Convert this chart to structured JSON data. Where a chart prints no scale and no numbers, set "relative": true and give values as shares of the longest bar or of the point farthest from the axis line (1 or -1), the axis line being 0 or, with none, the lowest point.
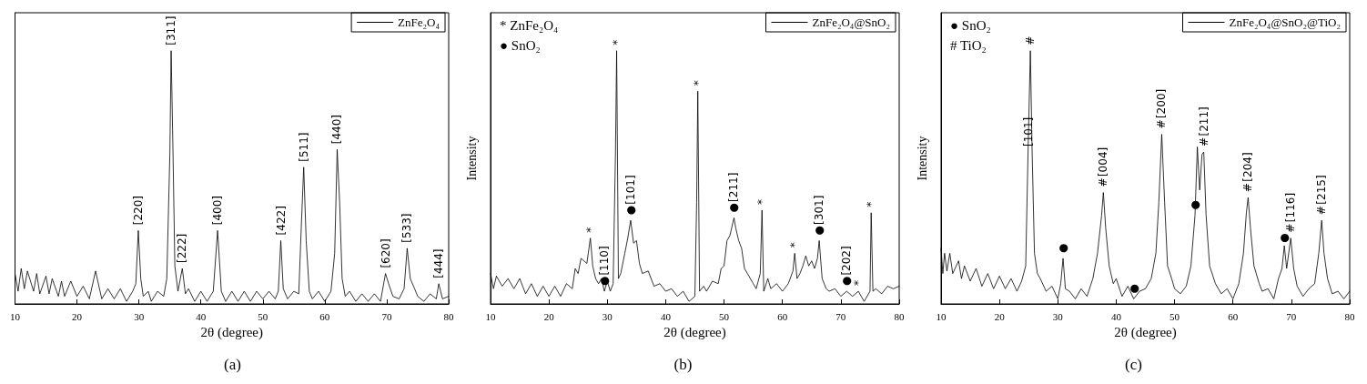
{
  "chart_data": [
    {
      "type": "line",
      "title": "(a)",
      "xlabel": "2θ (degree)",
      "relative": true,
      "xlim": [
        10,
        80
      ],
      "xticks": [
        10,
        20,
        30,
        40,
        50,
        60,
        70,
        80
      ],
      "legend": "top right",
      "grid": false,
      "series": [
        {
          "name": "ZnFe₂O₄",
          "color": "#000000",
          "x": [
            10,
            10.5,
            11,
            11.5,
            12,
            13,
            13.5,
            14,
            15,
            15.5,
            16,
            17,
            17.5,
            18,
            19,
            20,
            21,
            22,
            23,
            24,
            25,
            26,
            27,
            28,
            29,
            29.5,
            29.9,
            30.3,
            30.7,
            31.5,
            32,
            33,
            34,
            34.5,
            35,
            35.2,
            35.5,
            35.8,
            36.3,
            37,
            37.5,
            38,
            39,
            40,
            41,
            42,
            42.7,
            43.3,
            44,
            45,
            46,
            47,
            48,
            49,
            50,
            51,
            52,
            52.5,
            52.9,
            53.3,
            54,
            55,
            55.8,
            56.2,
            56.6,
            57,
            57.5,
            58,
            59,
            60,
            61,
            61.6,
            62,
            62.4,
            62.8,
            63.3,
            64,
            65,
            66,
            67,
            68,
            69,
            69.8,
            70.3,
            71,
            72,
            72.8,
            73.3,
            73.8,
            74.5,
            75,
            76,
            77,
            78,
            78.4,
            79,
            80
          ],
          "values": [
            0.12,
            0.05,
            0.14,
            0.06,
            0.13,
            0.05,
            0.12,
            0.04,
            0.11,
            0.04,
            0.1,
            0.03,
            0.09,
            0.03,
            0.09,
            0.03,
            0.07,
            0.02,
            0.13,
            0.02,
            0.06,
            0.02,
            0.06,
            0.01,
            0.05,
            0.08,
            0.29,
            0.1,
            0.03,
            0.05,
            0.01,
            0.05,
            0.03,
            0.1,
            0.6,
            1,
            0.6,
            0.15,
            0.05,
            0.14,
            0.04,
            0.06,
            0.01,
            0.05,
            0.01,
            0.05,
            0.29,
            0.05,
            0.01,
            0.05,
            0.01,
            0.05,
            0.01,
            0.05,
            0.02,
            0.05,
            0.02,
            0.05,
            0.25,
            0.06,
            0.02,
            0.05,
            0.04,
            0.3,
            0.54,
            0.25,
            0.05,
            0.02,
            0.05,
            0.01,
            0.05,
            0.2,
            0.61,
            0.4,
            0.1,
            0.03,
            0.05,
            0.01,
            0.04,
            0.01,
            0.04,
            0.01,
            0.12,
            0.08,
            0.03,
            0.02,
            0.06,
            0.22,
            0.1,
            0.06,
            0.03,
            0.01,
            0.04,
            0.02,
            0.08,
            0.02,
            0.03
          ]
        }
      ],
      "annotations": [
        {
          "text": "[220]",
          "x": 29.9,
          "y": 0.29
        },
        {
          "text": "[311]",
          "x": 35.2,
          "y": 1
        },
        {
          "text": "[222]",
          "x": 37,
          "y": 0.14
        },
        {
          "text": "[400]",
          "x": 42.7,
          "y": 0.29
        },
        {
          "text": "[422]",
          "x": 52.9,
          "y": 0.25
        },
        {
          "text": "[511]",
          "x": 56.6,
          "y": 0.54
        },
        {
          "text": "[440]",
          "x": 62,
          "y": 0.61
        },
        {
          "text": "[620]",
          "x": 69.8,
          "y": 0.12
        },
        {
          "text": "[533]",
          "x": 73.3,
          "y": 0.22
        },
        {
          "text": "[444]",
          "x": 78.4,
          "y": 0.08
        }
      ]
    },
    {
      "type": "line",
      "title": "(b)",
      "xlabel": "2θ (degree)",
      "ylabel": "Intensity",
      "relative": true,
      "xlim": [
        10,
        80
      ],
      "xticks": [
        10,
        20,
        30,
        40,
        50,
        60,
        70,
        80
      ],
      "legend": "top right",
      "grid": false,
      "series": [
        {
          "name": "ZnFe₂O₄@SnO₂",
          "color": "#000000",
          "x": [
            10,
            10.5,
            11,
            12,
            13,
            14,
            15,
            16,
            17,
            18,
            19,
            20,
            21,
            22,
            23,
            24,
            24.5,
            25,
            25.5,
            26,
            26.5,
            27.1,
            27.5,
            28,
            28.5,
            29,
            29.5,
            30,
            30.5,
            31,
            31.4,
            31.6,
            31.9,
            32.3,
            33,
            33.5,
            34,
            34.5,
            35,
            35.5,
            36,
            37,
            38,
            39,
            40,
            41,
            42,
            43,
            44,
            45,
            45.3,
            45.5,
            45.8,
            46.5,
            47,
            48,
            49,
            49.5,
            50,
            50.5,
            51,
            51.7,
            52,
            52.5,
            53,
            53.5,
            54,
            55,
            55.5,
            56.2,
            56.5,
            56.8,
            57.5,
            58,
            59,
            60,
            61,
            61.8,
            62.1,
            62.5,
            63,
            63.5,
            64,
            64.5,
            65,
            65.5,
            66,
            66.3,
            66.8,
            67.5,
            68,
            69,
            70,
            71,
            72,
            73,
            74,
            75,
            75.2,
            75.5,
            76,
            77,
            78,
            79,
            80
          ],
          "values": [
            0.12,
            0.06,
            0.11,
            0.07,
            0.1,
            0.06,
            0.1,
            0.04,
            0.08,
            0.03,
            0.07,
            0.03,
            0.07,
            0.03,
            0.08,
            0.06,
            0.14,
            0.12,
            0.18,
            0.17,
            0.16,
            0.26,
            0.15,
            0.1,
            0.08,
            0.1,
            0.05,
            0.09,
            0.05,
            0.08,
            0.6,
            1,
            0.1,
            0.12,
            0.2,
            0.26,
            0.33,
            0.24,
            0.25,
            0.16,
            0.12,
            0.13,
            0.07,
            0.08,
            0.05,
            0.06,
            0.03,
            0.05,
            0.01,
            0.03,
            0.4,
            0.84,
            0.05,
            0.07,
            0.05,
            0.09,
            0.08,
            0.14,
            0.15,
            0.25,
            0.27,
            0.34,
            0.3,
            0.25,
            0.22,
            0.14,
            0.12,
            0.08,
            0.06,
            0.12,
            0.37,
            0.05,
            0.1,
            0.06,
            0.08,
            0.05,
            0.08,
            0.13,
            0.2,
            0.1,
            0.12,
            0.15,
            0.19,
            0.15,
            0.17,
            0.14,
            0.18,
            0.25,
            0.1,
            0.06,
            0.05,
            0.06,
            0.03,
            0.05,
            0.03,
            0.05,
            0.01,
            0.05,
            0.36,
            0.05,
            0.06,
            0.04,
            0.07,
            0.06,
            0.07
          ]
        }
      ],
      "annotations": [
        "* ZnFe₂O₄",
        "● SnO₂",
        {
          "text": "*",
          "x": 27.1,
          "y": 0.26
        },
        {
          "text": "*",
          "x": 31.6,
          "y": 1
        },
        {
          "text": "*",
          "x": 45.5,
          "y": 0.84
        },
        {
          "text": "*",
          "x": 56.5,
          "y": 0.37
        },
        {
          "text": "*",
          "x": 62.1,
          "y": 0.2
        },
        {
          "text": "*",
          "x": 73,
          "y": 0.05
        },
        {
          "text": "*",
          "x": 75.2,
          "y": 0.36
        },
        {
          "text": "●",
          "x": 29.5,
          "y": 0.05
        },
        {
          "text": "[110]",
          "x": 29.5,
          "y": 0.05
        },
        {
          "text": "●",
          "x": 34,
          "y": 0.33
        },
        {
          "text": "[101]",
          "x": 34,
          "y": 0.33
        },
        {
          "text": "●",
          "x": 51.7,
          "y": 0.34
        },
        {
          "text": "[211]",
          "x": 51.7,
          "y": 0.34
        },
        {
          "text": "●",
          "x": 66.3,
          "y": 0.25
        },
        {
          "text": "[301]",
          "x": 66.3,
          "y": 0.25
        },
        {
          "text": "●",
          "x": 71,
          "y": 0.05
        },
        {
          "text": "[202]",
          "x": 71,
          "y": 0.05
        }
      ]
    },
    {
      "type": "line",
      "title": "(c)",
      "xlabel": "2θ (degree)",
      "ylabel": "Intensity",
      "relative": true,
      "xlim": [
        10,
        80
      ],
      "xticks": [
        10,
        20,
        30,
        40,
        50,
        60,
        70,
        80
      ],
      "legend": "top right",
      "grid": false,
      "series": [
        {
          "name": "ZnFe₂O₄@SnO₂@TiO₂",
          "color": "#000000",
          "x": [
            10,
            10.3,
            10.6,
            11,
            11.5,
            12,
            13,
            13.5,
            14,
            15,
            16,
            17,
            18,
            19,
            20,
            21,
            22,
            23,
            23.8,
            24.5,
            24.9,
            25.3,
            25.6,
            26,
            26.5,
            27,
            28,
            29,
            30,
            30.5,
            30.9,
            31.3,
            32,
            33,
            34,
            35,
            36,
            36.8,
            37.5,
            37.8,
            38.2,
            38.8,
            39.5,
            40,
            41,
            42,
            43,
            44,
            45,
            46,
            46.8,
            47.3,
            47.8,
            48.3,
            48.8,
            49.5,
            50,
            51,
            52,
            52.8,
            53.5,
            53.9,
            54.3,
            54.7,
            55,
            55.4,
            56,
            57,
            58,
            59,
            60,
            61,
            61.8,
            62.3,
            62.6,
            63,
            63.6,
            64.5,
            65,
            66,
            67,
            67.8,
            68.4,
            68.8,
            69.2,
            69.9,
            70.4,
            71,
            72,
            73,
            74,
            74.7,
            75.2,
            75.6,
            76.2,
            77,
            78,
            79,
            80
          ],
          "values": [
            0.22,
            0.12,
            0.2,
            0.13,
            0.2,
            0.12,
            0.17,
            0.1,
            0.15,
            0.09,
            0.14,
            0.07,
            0.12,
            0.06,
            0.11,
            0.06,
            0.1,
            0.05,
            0.09,
            0.15,
            0.6,
            1,
            0.6,
            0.2,
            0.12,
            0.1,
            0.05,
            0.07,
            0.02,
            0.08,
            0.18,
            0.06,
            0.05,
            0.02,
            0.06,
            0.03,
            0.1,
            0.2,
            0.35,
            0.44,
            0.3,
            0.15,
            0.08,
            0.1,
            0.03,
            0.07,
            0.02,
            0.05,
            0.06,
            0.1,
            0.2,
            0.4,
            0.67,
            0.4,
            0.15,
            0.1,
            0.06,
            0.04,
            0.07,
            0.15,
            0.35,
            0.62,
            0.45,
            0.59,
            0.6,
            0.35,
            0.15,
            0.08,
            0.04,
            0.06,
            0.02,
            0.08,
            0.2,
            0.36,
            0.42,
            0.3,
            0.15,
            0.08,
            0.05,
            0.06,
            0.02,
            0.1,
            0.14,
            0.23,
            0.14,
            0.26,
            0.14,
            0.07,
            0.03,
            0.06,
            0.08,
            0.2,
            0.33,
            0.2,
            0.1,
            0.04,
            0.05,
            0.02,
            0.05
          ]
        }
      ],
      "annotations": [
        "● SnO₂",
        "# TiO₂",
        {
          "text": "#",
          "x": 25.3,
          "y": 1
        },
        {
          "text": "[101]",
          "x": 24.9,
          "y": 0.6
        },
        {
          "text": "●",
          "x": 30.9,
          "y": 0.18
        },
        {
          "text": "#",
          "x": 37.8,
          "y": 0.44
        },
        {
          "text": "[004]",
          "x": 37.8,
          "y": 0.44
        },
        {
          "text": "●",
          "x": 43,
          "y": 0.02
        },
        {
          "text": "#",
          "x": 47.8,
          "y": 0.67
        },
        {
          "text": "[200]",
          "x": 47.8,
          "y": 0.67
        },
        {
          "text": "●",
          "x": 53.5,
          "y": 0.35
        },
        {
          "text": "#",
          "x": 55,
          "y": 0.6
        },
        {
          "text": "[211]",
          "x": 55,
          "y": 0.6
        },
        {
          "text": "#",
          "x": 62.6,
          "y": 0.42
        },
        {
          "text": "[204]",
          "x": 62.6,
          "y": 0.42
        },
        {
          "text": "●",
          "x": 68.8,
          "y": 0.22
        },
        {
          "text": "#",
          "x": 69.9,
          "y": 0.26
        },
        {
          "text": "[116]",
          "x": 69.9,
          "y": 0.26
        },
        {
          "text": "#",
          "x": 75.2,
          "y": 0.33
        },
        {
          "text": "[215]",
          "x": 75.2,
          "y": 0.33
        }
      ]
    }
  ]
}
